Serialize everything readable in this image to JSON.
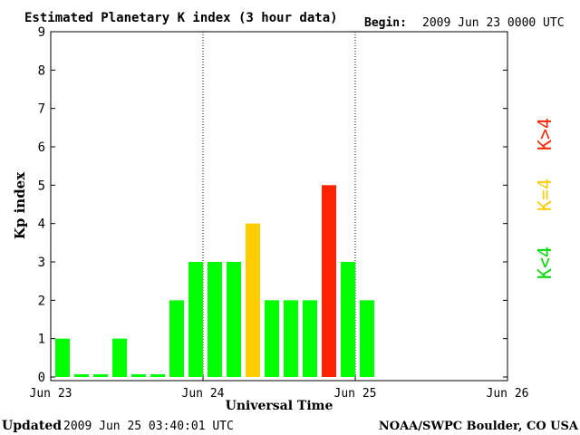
{
  "header": {
    "title": "Estimated Planetary K index (3 hour data)",
    "begin_label": "Begin:",
    "begin_value": "2009 Jun 23 0000 UTC"
  },
  "footer": {
    "updated_label": "Updated",
    "updated_value": "2009 Jun 25 03:40:01 UTC",
    "credit": "NOAA/SWPC Boulder, CO USA"
  },
  "legend": {
    "high": "K>4",
    "mid": "K=4",
    "low": "K<4"
  },
  "colors": {
    "low": "#00ff00",
    "mid": "#ffcc00",
    "high": "#ff2200"
  },
  "chart_data": {
    "type": "bar",
    "title": "Estimated Planetary K index (3 hour data)",
    "xlabel": "Universal Time",
    "ylabel": "Kp index",
    "ylim": [
      0,
      9
    ],
    "yticks": [
      0,
      1,
      2,
      3,
      4,
      5,
      6,
      7,
      8,
      9
    ],
    "x_tick_labels": [
      "Jun 23",
      "Jun 24",
      "Jun 25",
      "Jun 26"
    ],
    "day_dividers": [
      "Jun 24",
      "Jun 25"
    ],
    "categories": [
      "Jun 23 00",
      "Jun 23 03",
      "Jun 23 06",
      "Jun 23 09",
      "Jun 23 12",
      "Jun 23 15",
      "Jun 23 18",
      "Jun 23 21",
      "Jun 24 00",
      "Jun 24 03",
      "Jun 24 06",
      "Jun 24 09",
      "Jun 24 12",
      "Jun 24 15",
      "Jun 24 18",
      "Jun 24 21",
      "Jun 25 00"
    ],
    "values": [
      1,
      0,
      0,
      1,
      0,
      0,
      2,
      3,
      3,
      3,
      4,
      2,
      2,
      2,
      5,
      3,
      2
    ]
  }
}
